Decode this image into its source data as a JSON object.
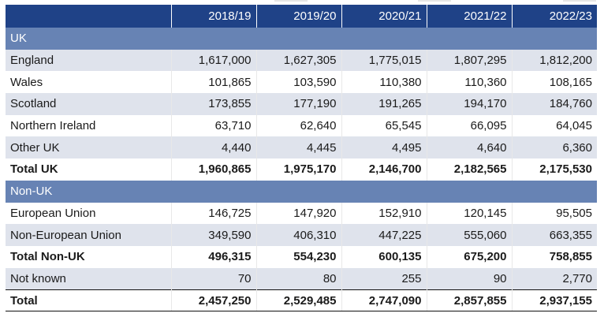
{
  "table": {
    "columns": [
      "",
      "2018/19",
      "2019/20",
      "2020/21",
      "2021/22",
      "2022/23"
    ],
    "rows": [
      {
        "type": "section",
        "label": "UK",
        "values": [
          "",
          "",
          "",
          "",
          ""
        ]
      },
      {
        "type": "shade",
        "label": "England",
        "values": [
          "1,617,000",
          "1,627,305",
          "1,775,015",
          "1,807,295",
          "1,812,200"
        ]
      },
      {
        "type": "plain",
        "label": "Wales",
        "values": [
          "101,865",
          "103,590",
          "110,380",
          "110,360",
          "108,165"
        ]
      },
      {
        "type": "shade",
        "label": "Scotland",
        "values": [
          "173,855",
          "177,190",
          "191,265",
          "194,170",
          "184,760"
        ]
      },
      {
        "type": "plain",
        "label": "Northern Ireland",
        "values": [
          "63,710",
          "62,640",
          "65,545",
          "66,095",
          "64,045"
        ]
      },
      {
        "type": "shade",
        "label": "Other UK",
        "values": [
          "4,440",
          "4,445",
          "4,495",
          "4,640",
          "6,360"
        ]
      },
      {
        "type": "total",
        "label": "Total UK",
        "values": [
          "1,960,865",
          "1,975,170",
          "2,146,700",
          "2,182,565",
          "2,175,530"
        ]
      },
      {
        "type": "section",
        "label": "Non-UK",
        "values": [
          "",
          "",
          "",
          "",
          ""
        ]
      },
      {
        "type": "plain",
        "label": "European Union",
        "values": [
          "146,725",
          "147,920",
          "152,910",
          "120,145",
          "95,505"
        ]
      },
      {
        "type": "shade",
        "label": "Non-European Union",
        "values": [
          "349,590",
          "406,310",
          "447,225",
          "555,060",
          "663,355"
        ]
      },
      {
        "type": "total",
        "label": "Total Non-UK",
        "values": [
          "496,315",
          "554,230",
          "600,135",
          "675,200",
          "758,855"
        ]
      },
      {
        "type": "shade",
        "label": "Not known",
        "values": [
          "70",
          "80",
          "255",
          "90",
          "2,770"
        ]
      },
      {
        "type": "grand",
        "label": "Total",
        "values": [
          "2,457,250",
          "2,529,485",
          "2,747,090",
          "2,857,855",
          "2,937,155"
        ]
      }
    ]
  },
  "colors": {
    "header_bg": "#1f4287",
    "section_bg": "#6783b4",
    "shade_bg": "#dfe3ec"
  }
}
